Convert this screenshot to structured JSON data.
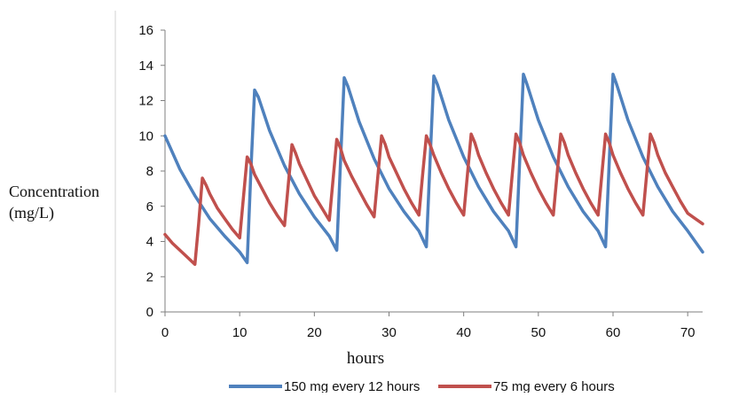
{
  "chart_data": {
    "type": "line",
    "title": "",
    "ylabel_lines": [
      "Concentration",
      "(mg/L)"
    ],
    "xlabel": "hours",
    "xlim": [
      0,
      72
    ],
    "ylim": [
      0,
      16
    ],
    "x_ticks": [
      0,
      10,
      20,
      30,
      40,
      50,
      60,
      70
    ],
    "y_ticks": [
      0,
      2,
      4,
      6,
      8,
      10,
      12,
      14,
      16
    ],
    "grid": false,
    "legend_position": "bottom",
    "series": [
      {
        "name": "150 mg every 12 hours",
        "color": "#4F81BD",
        "x": [
          0,
          2,
          4,
          6,
          8,
          10,
          11,
          11.5,
          12,
          12.5,
          14,
          16,
          18,
          20,
          22,
          23,
          23.5,
          24,
          24.5,
          26,
          28,
          30,
          32,
          34,
          35,
          35.5,
          36,
          36.5,
          38,
          40,
          42,
          44,
          46,
          47,
          47.5,
          48,
          48.5,
          50,
          52,
          54,
          56,
          58,
          59,
          59.5,
          60,
          60.5,
          62,
          64,
          66,
          68,
          70,
          72
        ],
        "y": [
          10.0,
          8.1,
          6.6,
          5.3,
          4.3,
          3.4,
          2.8,
          8.0,
          12.6,
          12.2,
          10.3,
          8.3,
          6.7,
          5.4,
          4.3,
          3.5,
          8.5,
          13.3,
          12.8,
          10.8,
          8.7,
          7.0,
          5.7,
          4.6,
          3.7,
          8.6,
          13.4,
          12.9,
          10.9,
          8.8,
          7.1,
          5.7,
          4.6,
          3.7,
          8.6,
          13.5,
          12.9,
          10.9,
          8.8,
          7.1,
          5.7,
          4.6,
          3.7,
          8.6,
          13.5,
          12.9,
          10.9,
          8.8,
          7.1,
          5.7,
          4.6,
          3.4
        ]
      },
      {
        "name": "75 mg every 6 hours",
        "color": "#C0504D",
        "x": [
          0,
          1,
          2,
          3,
          4,
          4.5,
          5,
          5.5,
          6,
          7,
          8,
          9,
          10,
          10.5,
          11,
          11.5,
          12,
          13,
          14,
          15,
          16,
          16.5,
          17,
          17.5,
          18,
          19,
          20,
          21,
          22,
          22.5,
          23,
          23.5,
          24,
          25,
          26,
          27,
          28,
          28.5,
          29,
          29.5,
          30,
          31,
          32,
          33,
          34,
          34.5,
          35,
          35.5,
          36,
          37,
          38,
          39,
          40,
          40.5,
          41,
          41.5,
          42,
          43,
          44,
          45,
          46,
          46.5,
          47,
          47.5,
          48,
          49,
          50,
          51,
          52,
          52.5,
          53,
          53.5,
          54,
          55,
          56,
          57,
          58,
          58.5,
          59,
          59.5,
          60,
          61,
          62,
          63,
          64,
          64.5,
          65,
          65.5,
          66,
          67,
          68,
          69,
          70,
          71,
          72
        ],
        "y": [
          4.4,
          3.9,
          3.5,
          3.1,
          2.7,
          5.0,
          7.6,
          7.2,
          6.7,
          5.9,
          5.3,
          4.7,
          4.2,
          6.5,
          8.8,
          8.4,
          7.8,
          7.0,
          6.2,
          5.5,
          4.9,
          7.2,
          9.5,
          9.0,
          8.4,
          7.5,
          6.6,
          5.9,
          5.2,
          7.5,
          9.8,
          9.3,
          8.6,
          7.7,
          6.9,
          6.1,
          5.4,
          7.7,
          10.0,
          9.5,
          8.8,
          7.9,
          7.0,
          6.2,
          5.5,
          7.8,
          10.0,
          9.5,
          8.9,
          7.9,
          7.0,
          6.2,
          5.5,
          7.8,
          10.1,
          9.6,
          8.9,
          7.9,
          7.0,
          6.2,
          5.5,
          7.8,
          10.1,
          9.6,
          8.9,
          7.9,
          7.0,
          6.2,
          5.5,
          7.8,
          10.1,
          9.6,
          8.9,
          7.9,
          7.0,
          6.2,
          5.5,
          7.8,
          10.1,
          9.6,
          8.9,
          7.9,
          7.0,
          6.2,
          5.5,
          7.8,
          10.1,
          9.6,
          8.9,
          7.9,
          7.1,
          6.3,
          5.6,
          5.3,
          5.0
        ]
      }
    ]
  }
}
